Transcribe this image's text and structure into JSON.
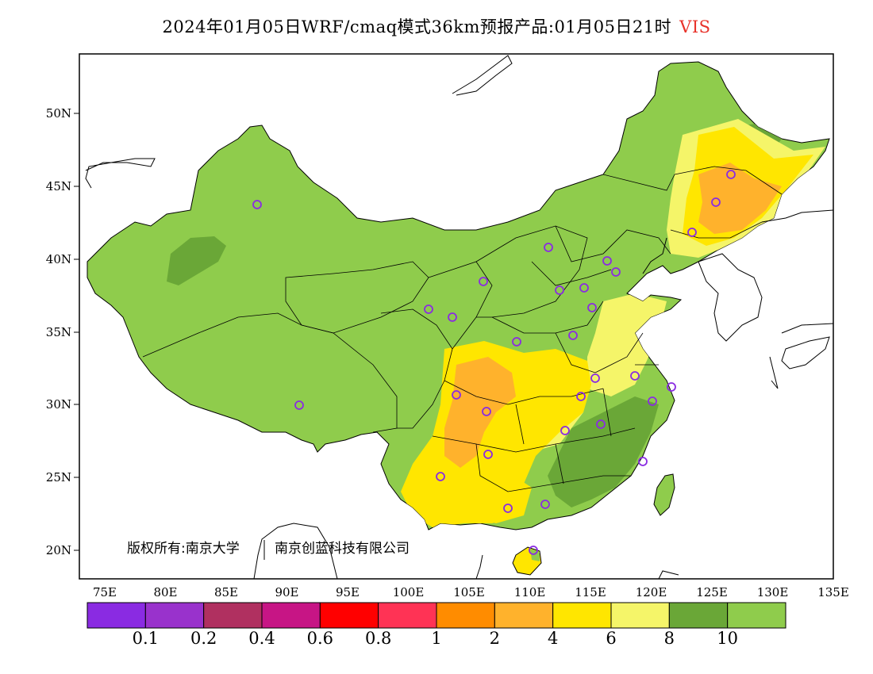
{
  "title": {
    "text": "2024年01月05日WRF/cmaq模式36km预报产品:01月05日21时",
    "variable": "VIS",
    "variable_color": "#e8322a"
  },
  "copyright": {
    "owner1": "版权所有:南京大学",
    "owner2": "南京创蓝科技有限公司"
  },
  "axes": {
    "lat_labels": [
      "20N",
      "25N",
      "30N",
      "35N",
      "40N",
      "45N",
      "50N"
    ],
    "lon_labels": [
      "75E",
      "80E",
      "85E",
      "90E",
      "95E",
      "100E",
      "105E",
      "110E",
      "115E",
      "120E",
      "125E",
      "130E",
      "135E"
    ]
  },
  "colorbar": {
    "colors": [
      "#8a2be2",
      "#9932cc",
      "#b03060",
      "#c71585",
      "#ff0000",
      "#ff3355",
      "#ff8c00",
      "#ffb22c",
      "#ffe600",
      "#f5f569",
      "#6aa737",
      "#8fcc4c"
    ],
    "labels": [
      "0.1",
      "0.2",
      "0.4",
      "0.6",
      "0.8",
      "1",
      "2",
      "4",
      "6",
      "8",
      "10"
    ]
  },
  "stations_count": 31,
  "station_color": "#8a2be2",
  "fill_colors": {
    "green": "#8fcc4c",
    "dark_green": "#6aa737",
    "light_yellow": "#f5f569",
    "yellow": "#ffe600",
    "orange": "#ffb22c",
    "ocean": "#ffffff"
  }
}
